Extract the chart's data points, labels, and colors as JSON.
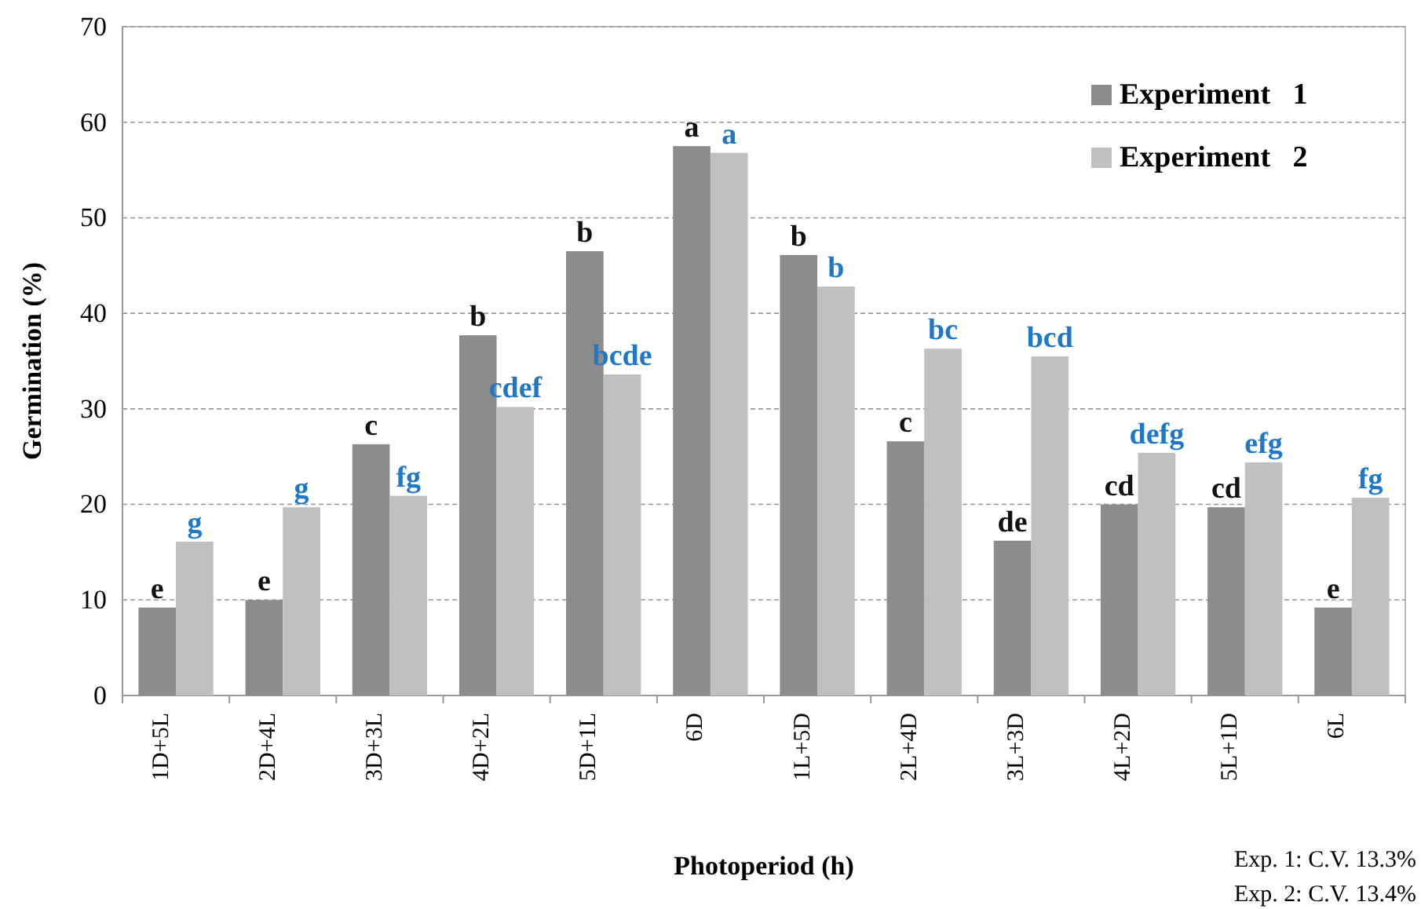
{
  "chart_data": {
    "type": "bar",
    "xlabel": "Photoperiod (h)",
    "ylabel": "Germination (%)",
    "categories": [
      "1D+5L",
      "2D+4L",
      "3D+3L",
      "4D+2L",
      "5D+1L",
      "6D",
      "1L+5D",
      "2L+4D",
      "3L+3D",
      "4L+2D",
      "5L+1D",
      "6L"
    ],
    "series": [
      {
        "name": "Experiment   1",
        "color": "#8c8c8c",
        "values": [
          9.2,
          10,
          26.3,
          37.7,
          46.5,
          57.5,
          46.1,
          26.6,
          16.2,
          20,
          19.7,
          9.2
        ],
        "value_labels": [
          "e",
          "e",
          "c",
          "b",
          "b",
          "a",
          "b",
          "c",
          "de",
          "cd",
          "cd",
          "e"
        ]
      },
      {
        "name": "Experiment   2",
        "color": "#c0c0c0",
        "values": [
          16.1,
          19.7,
          20.9,
          30.2,
          33.6,
          56.8,
          42.8,
          36.3,
          35.5,
          25.4,
          24.4,
          20.7
        ],
        "value_labels": [
          "g",
          "g",
          "fg",
          "cdef",
          "bcde",
          "a",
          "b",
          "bc",
          "bcd",
          "defg",
          "efg",
          "fg"
        ]
      }
    ],
    "ylim": [
      0,
      70
    ],
    "yticks": [
      0,
      10,
      20,
      30,
      40,
      50,
      60,
      70
    ],
    "grid": "y",
    "legend": "top right",
    "annotations": [
      "Exp. 1: C.V. 13.3%",
      "Exp. 2: C.V. 13.4%"
    ]
  }
}
